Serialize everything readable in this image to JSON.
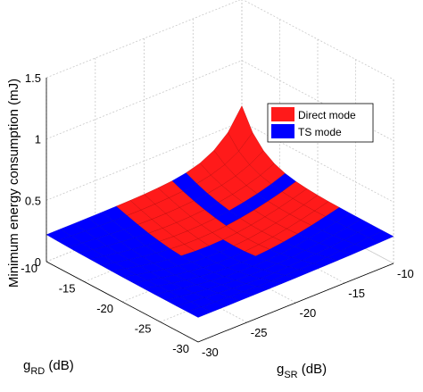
{
  "chart_data": {
    "type": "surface3d",
    "title": "",
    "xlabel": "g_SR (dB)",
    "ylabel": "g_RD (dB)",
    "zlabel": "Minimum energy consumption (mJ)",
    "xlabel_parts": {
      "base": "g",
      "sub": "SR",
      "unit": " (dB)"
    },
    "ylabel_parts": {
      "base": "g",
      "sub": "RD",
      "unit": " (dB)"
    },
    "xlim": [
      -30,
      -10
    ],
    "ylim": [
      -30,
      -10
    ],
    "zlim": [
      0,
      1.5
    ],
    "x_ticks": [
      -30,
      -25,
      -20,
      -15,
      -10
    ],
    "y_ticks": [
      -30,
      -25,
      -20,
      -15,
      -10
    ],
    "z_ticks": [
      0,
      0.5,
      1,
      1.5
    ],
    "x_tick_labels": [
      "-30",
      "-25",
      "-20",
      "-15",
      "-10"
    ],
    "y_tick_labels": [
      "-30",
      "-25",
      "-20",
      "-15",
      "-10"
    ],
    "z_tick_labels": [
      "0",
      "0.5",
      "1",
      "1.5"
    ],
    "grid": true,
    "legend_position": "top-right",
    "series": [
      {
        "name": "Direct mode",
        "color": "#ff1a1a"
      },
      {
        "name": "TS mode",
        "color": "#0000ff"
      }
    ],
    "peak": {
      "x": -10,
      "y": -10,
      "z": 0.63
    },
    "corner_values": {
      "x-30_y-10": 0.22,
      "x-10_y-30": 0.22,
      "x-30_y-30": 0.2
    }
  }
}
